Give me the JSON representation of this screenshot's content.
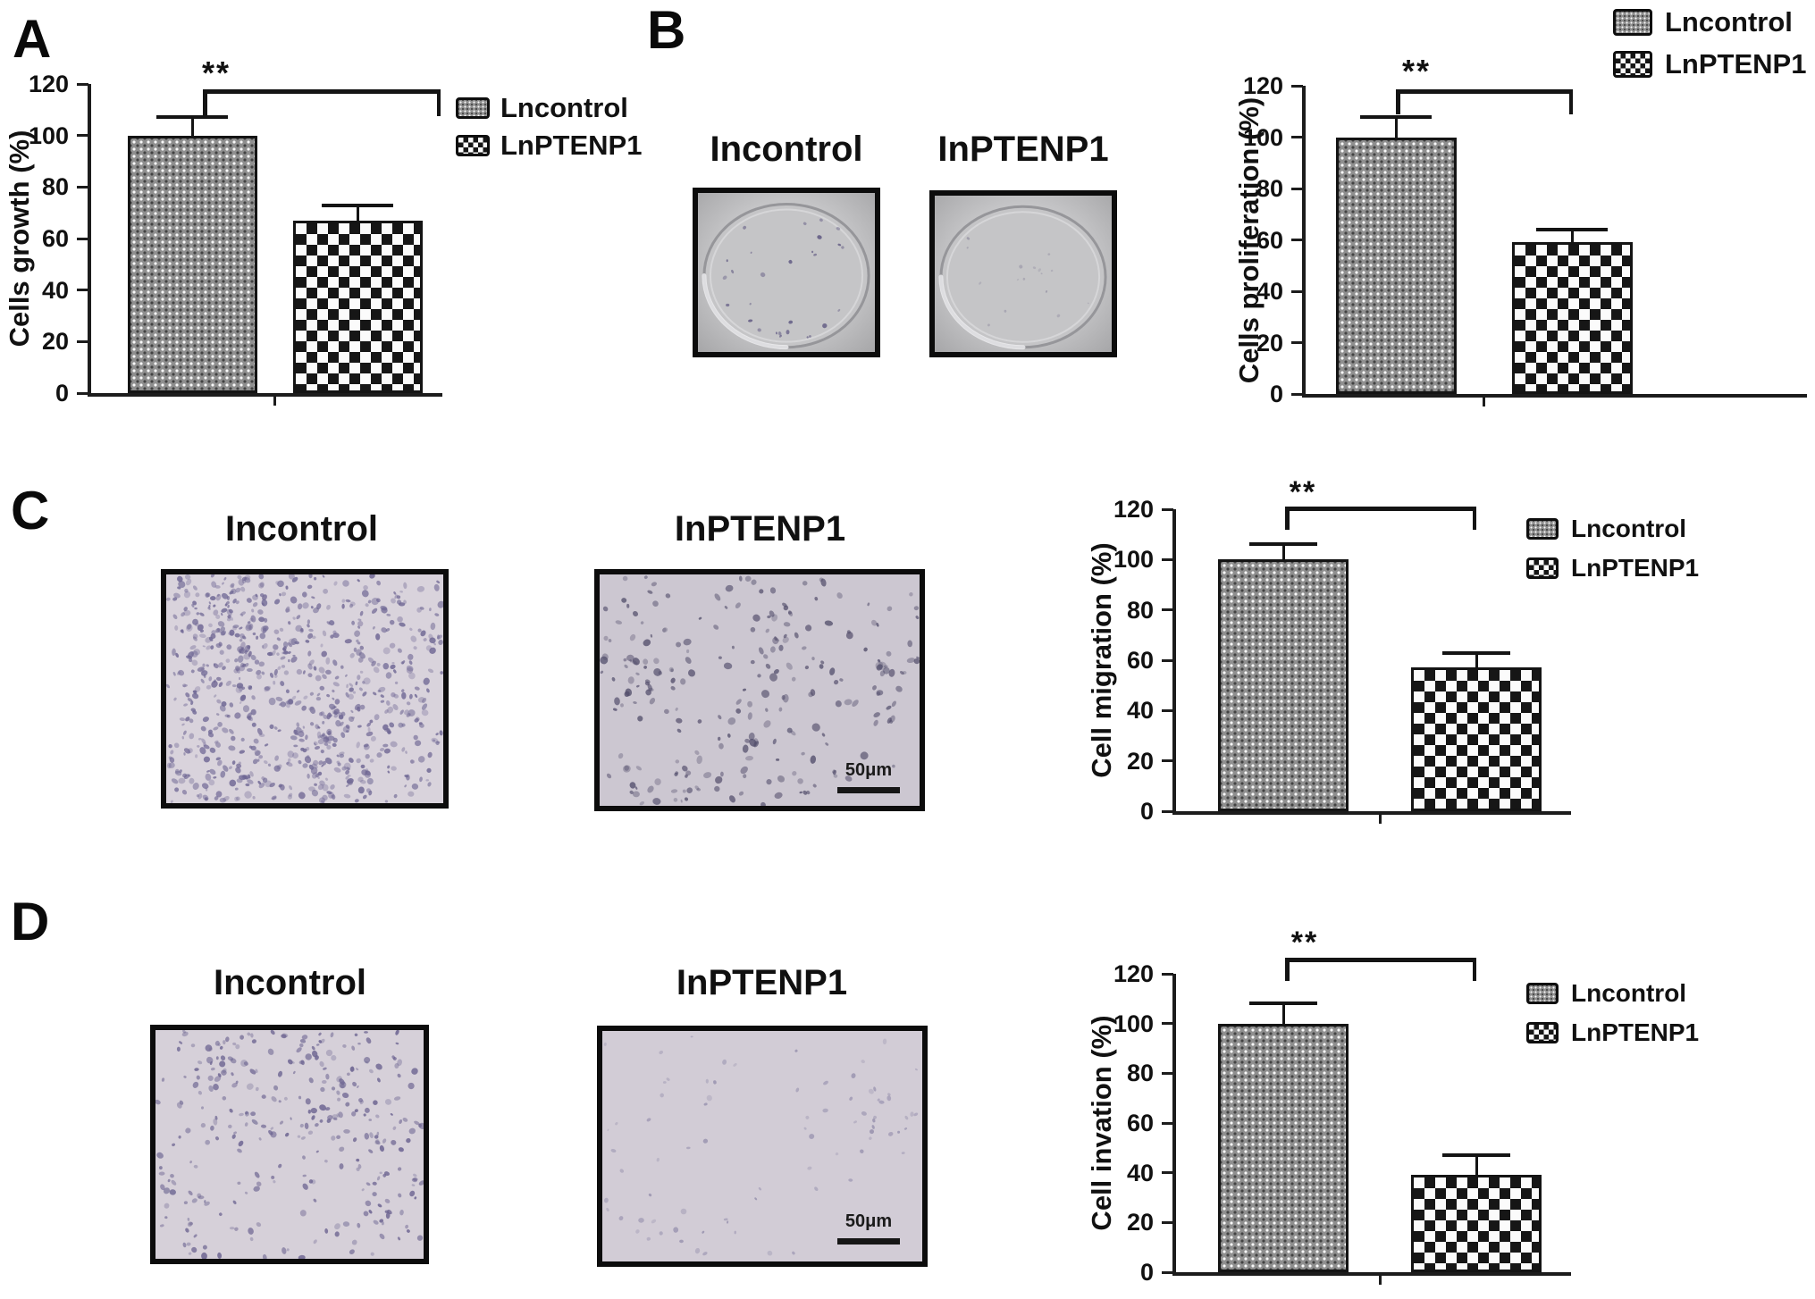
{
  "panels": {
    "A": {
      "label": "A"
    },
    "B": {
      "label": "B"
    },
    "C": {
      "label": "C"
    },
    "D": {
      "label": "D"
    }
  },
  "images": {
    "b_incontrol": {
      "title": "Incontrol",
      "kind": "colony-formation-dish",
      "colonies": "many dark colonies"
    },
    "b_inptenp1": {
      "title": "InPTENP1",
      "kind": "colony-formation-dish",
      "colonies": "few faint colonies"
    },
    "c_incontrol": {
      "title": "Incontrol",
      "kind": "transwell-micrograph",
      "cell_density": "dense stained cells"
    },
    "c_inptenp1": {
      "title": "InPTENP1",
      "kind": "transwell-micrograph",
      "cell_density": "moderate stained cells",
      "scale_label": "50μm"
    },
    "d_incontrol": {
      "title": "Incontrol",
      "kind": "transwell-micrograph",
      "cell_density": "moderate sparse stained cells"
    },
    "d_inptenp1": {
      "title": "InPTENP1",
      "kind": "transwell-micrograph",
      "cell_density": "very sparse stained cells",
      "scale_label": "50μm"
    }
  },
  "chart_data": [
    {
      "panel": "A",
      "type": "bar",
      "title": "",
      "xlabel": "",
      "ylabel": "Cells growth (%)",
      "ylim": [
        0,
        120
      ],
      "yticks": [
        0,
        20,
        40,
        60,
        80,
        100,
        120
      ],
      "grid": false,
      "categories": [
        "Lncontrol",
        "LnPTENP1"
      ],
      "series": [
        {
          "name": "Lncontrol",
          "value": 100,
          "error": 7,
          "pattern": "stipple"
        },
        {
          "name": "LnPTENP1",
          "value": 67,
          "error": 6,
          "pattern": "checker"
        }
      ],
      "significance": "**",
      "legend": [
        "Lncontrol",
        "LnPTENP1"
      ],
      "legend_position": "right-of-plot-top"
    },
    {
      "panel": "B",
      "type": "bar",
      "title": "",
      "xlabel": "",
      "ylabel": "Cells proliferation (%)",
      "ylim": [
        0,
        120
      ],
      "yticks": [
        0,
        20,
        40,
        60,
        80,
        100,
        120
      ],
      "grid": false,
      "categories": [
        "Lncontrol",
        "LnPTENP1"
      ],
      "series": [
        {
          "name": "Lncontrol",
          "value": 100,
          "error": 8,
          "pattern": "stipple"
        },
        {
          "name": "LnPTENP1",
          "value": 59,
          "error": 5,
          "pattern": "checker"
        }
      ],
      "significance": "**",
      "legend": [
        "Lncontrol",
        "LnPTENP1"
      ],
      "legend_position": "top-right-corner"
    },
    {
      "panel": "C",
      "type": "bar",
      "title": "",
      "xlabel": "",
      "ylabel": "Cell migration (%)",
      "ylim": [
        0,
        120
      ],
      "yticks": [
        0,
        20,
        40,
        60,
        80,
        100,
        120
      ],
      "grid": false,
      "categories": [
        "Lncontrol",
        "LnPTENP1"
      ],
      "series": [
        {
          "name": "Lncontrol",
          "value": 100,
          "error": 6,
          "pattern": "stipple"
        },
        {
          "name": "LnPTENP1",
          "value": 57,
          "error": 6,
          "pattern": "checker"
        }
      ],
      "significance": "**",
      "legend": [
        "Lncontrol",
        "LnPTENP1"
      ],
      "legend_position": "right-of-plot-top"
    },
    {
      "panel": "D",
      "type": "bar",
      "title": "",
      "xlabel": "",
      "ylabel": "Cell invation (%)",
      "ylim": [
        0,
        120
      ],
      "yticks": [
        0,
        20,
        40,
        60,
        80,
        100,
        120
      ],
      "grid": false,
      "categories": [
        "Lncontrol",
        "LnPTENP1"
      ],
      "series": [
        {
          "name": "Lncontrol",
          "value": 100,
          "error": 8,
          "pattern": "stipple"
        },
        {
          "name": "LnPTENP1",
          "value": 39,
          "error": 8,
          "pattern": "checker"
        }
      ],
      "significance": "**",
      "legend": [
        "Lncontrol",
        "LnPTENP1"
      ],
      "legend_position": "right-of-plot-top"
    }
  ]
}
